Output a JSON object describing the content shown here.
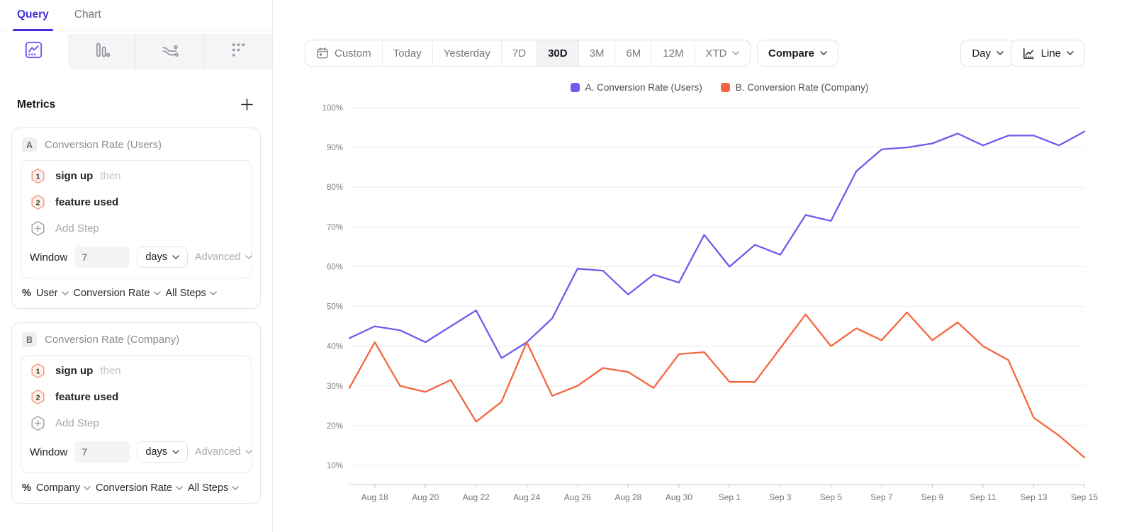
{
  "colors": {
    "accent": "#4330d8",
    "icon_gray": "#9a9aa2",
    "grid": "#ececef",
    "axis": "#c8c8cd",
    "tick_text": "#73737b"
  },
  "sidebar": {
    "tabs": [
      {
        "label": "Query"
      },
      {
        "label": "Chart"
      }
    ],
    "chart_type_tabs": [
      "insights",
      "bars",
      "flows",
      "retention"
    ],
    "metrics": {
      "title": "Metrics",
      "add_icon": "plus",
      "cards": [
        {
          "badge": "A",
          "title": "Conversion Rate (Users)",
          "steps": [
            {
              "num": "1",
              "label": "sign up",
              "suffix": "then"
            },
            {
              "num": "2",
              "label": "feature used",
              "suffix": ""
            }
          ],
          "add_step_label": "Add Step",
          "window_label": "Window",
          "window_value": "7",
          "window_unit": "days",
          "advanced_label": "Advanced",
          "footer": {
            "prefix": "%",
            "entity": "User",
            "measure": "Conversion Rate",
            "steps": "All Steps"
          }
        },
        {
          "badge": "B",
          "title": "Conversion Rate (Company)",
          "steps": [
            {
              "num": "1",
              "label": "sign up",
              "suffix": "then"
            },
            {
              "num": "2",
              "label": "feature used",
              "suffix": ""
            }
          ],
          "add_step_label": "Add Step",
          "window_label": "Window",
          "window_value": "7",
          "window_unit": "days",
          "advanced_label": "Advanced",
          "footer": {
            "prefix": "%",
            "entity": "Company",
            "measure": "Conversion Rate",
            "steps": "All Steps"
          }
        }
      ]
    }
  },
  "toolbar": {
    "date_ranges": [
      {
        "label": "Custom"
      },
      {
        "label": "Today"
      },
      {
        "label": "Yesterday"
      },
      {
        "label": "7D"
      },
      {
        "label": "30D"
      },
      {
        "label": "3M"
      },
      {
        "label": "6M"
      },
      {
        "label": "12M"
      },
      {
        "label": "XTD"
      }
    ],
    "selected_range": "30D",
    "compare_label": "Compare",
    "granularity_label": "Day",
    "chart_style_label": "Line"
  },
  "chart_data": {
    "type": "line",
    "title": "",
    "x": [
      "Aug 17",
      "Aug 18",
      "Aug 19",
      "Aug 20",
      "Aug 21",
      "Aug 22",
      "Aug 23",
      "Aug 24",
      "Aug 25",
      "Aug 26",
      "Aug 27",
      "Aug 28",
      "Aug 29",
      "Aug 30",
      "Aug 31",
      "Sep 1",
      "Sep 2",
      "Sep 3",
      "Sep 4",
      "Sep 5",
      "Sep 6",
      "Sep 7",
      "Sep 8",
      "Sep 9",
      "Sep 10",
      "Sep 11",
      "Sep 12",
      "Sep 13",
      "Sep 14",
      "Sep 15"
    ],
    "x_ticks_shown": [
      "Aug 18",
      "Aug 20",
      "Aug 22",
      "Aug 24",
      "Aug 26",
      "Aug 28",
      "Aug 30",
      "Sep 1",
      "Sep 3",
      "Sep 5",
      "Sep 7",
      "Sep 9",
      "Sep 11",
      "Sep 13",
      "Sep 15"
    ],
    "y_ticks": [
      "100%",
      "90%",
      "80%",
      "70%",
      "60%",
      "50%",
      "40%",
      "30%",
      "20%",
      "10%"
    ],
    "ylim": [
      10,
      100
    ],
    "grid": "horizontal-only",
    "legend_position": "top-center",
    "series": [
      {
        "name": "A. Conversion Rate (Users)",
        "color": "#715aec",
        "values": [
          42,
          45,
          44,
          41,
          45,
          49,
          37,
          41,
          47,
          59.5,
          59,
          53,
          58,
          56,
          68,
          60,
          65.5,
          63,
          73,
          71.5,
          84,
          89.5,
          90,
          91,
          93.5,
          90.5,
          93,
          93,
          90.5,
          94
        ]
      },
      {
        "name": "B. Conversion Rate (Company)",
        "color": "#f4663f",
        "values": [
          29.5,
          41,
          30,
          28.5,
          31.5,
          21,
          26,
          41,
          27.5,
          30,
          34.5,
          33.5,
          29.5,
          38,
          38.5,
          31,
          31,
          39.5,
          48,
          40,
          44.5,
          41.5,
          48.5,
          41.5,
          46,
          40,
          36.5,
          22,
          17.5,
          12
        ]
      }
    ]
  }
}
